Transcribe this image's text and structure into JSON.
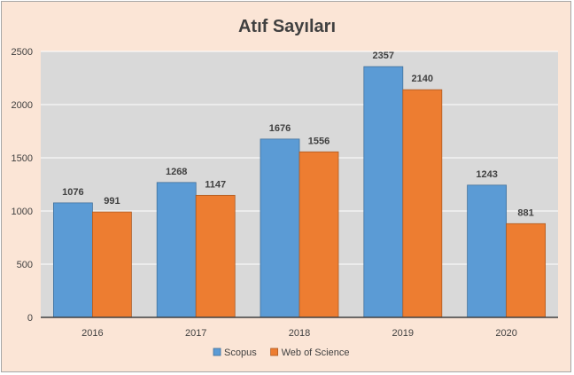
{
  "chart_data": {
    "type": "bar",
    "title": "Atıf Sayıları",
    "categories": [
      "2016",
      "2017",
      "2018",
      "2019",
      "2020"
    ],
    "series": [
      {
        "name": "Scopus",
        "values": [
          1076,
          1268,
          1676,
          2357,
          1243
        ],
        "color": "#5b9bd5"
      },
      {
        "name": "Web of Science",
        "values": [
          991,
          1147,
          1556,
          2140,
          881
        ],
        "color": "#ed7d31"
      }
    ],
    "ylim": [
      0,
      2500
    ],
    "yticks": [
      0,
      500,
      1000,
      1500,
      2000,
      2500
    ],
    "grid": true,
    "legend_position": "bottom",
    "plot_background": "#d9d9d9",
    "chart_background": "#fbe5d6"
  }
}
